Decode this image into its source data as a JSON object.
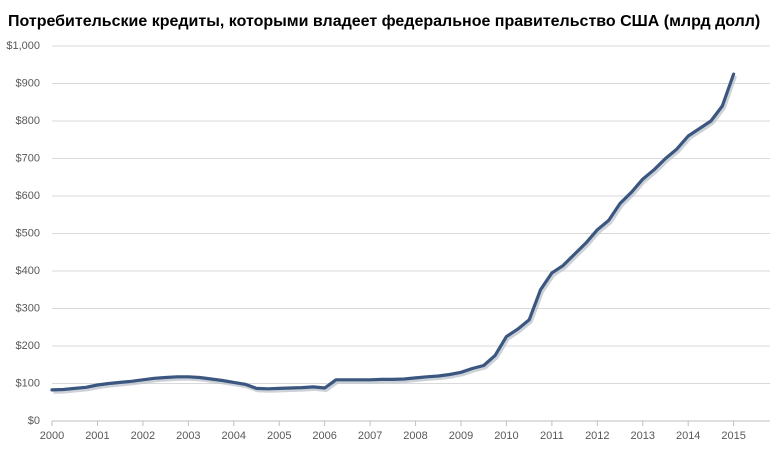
{
  "chart_data": {
    "type": "line",
    "title": "Потребительские кредиты, которыми владеет федеральное правительство США (млрд долл)",
    "x": [
      2000,
      2000.25,
      2000.5,
      2000.75,
      2001,
      2001.25,
      2001.5,
      2001.75,
      2002,
      2002.25,
      2002.5,
      2002.75,
      2003,
      2003.25,
      2003.5,
      2003.75,
      2004,
      2004.25,
      2004.5,
      2004.75,
      2005,
      2005.25,
      2005.5,
      2005.75,
      2006,
      2006.25,
      2006.5,
      2006.75,
      2007,
      2007.25,
      2007.5,
      2007.75,
      2008,
      2008.25,
      2008.5,
      2008.75,
      2009,
      2009.25,
      2009.5,
      2009.75,
      2010,
      2010.25,
      2010.5,
      2010.75,
      2011,
      2011.25,
      2011.5,
      2011.75,
      2012,
      2012.25,
      2012.5,
      2012.75,
      2013,
      2013.25,
      2013.5,
      2013.75,
      2014,
      2014.25,
      2014.5,
      2014.75,
      2015
    ],
    "series": [
      {
        "name": "Потребительские кредиты",
        "color": "#3b5780",
        "values": [
          83,
          84,
          87,
          90,
          96,
          100,
          103,
          106,
          110,
          114,
          116,
          118,
          118,
          116,
          112,
          108,
          103,
          98,
          87,
          86,
          87,
          88,
          89,
          91,
          88,
          110,
          110,
          110,
          110,
          111,
          111,
          112,
          115,
          118,
          120,
          124,
          130,
          140,
          148,
          175,
          225,
          245,
          270,
          350,
          395,
          415,
          445,
          475,
          510,
          535,
          580,
          610,
          645,
          670,
          700,
          725,
          760,
          780,
          800,
          840,
          925
        ]
      }
    ],
    "xlim": [
      2000,
      2015.8
    ],
    "xticks": [
      2000,
      2001,
      2002,
      2003,
      2004,
      2005,
      2006,
      2007,
      2008,
      2009,
      2010,
      2011,
      2012,
      2013,
      2014,
      2015
    ],
    "ylim": [
      0,
      1000
    ],
    "yticks": [
      {
        "value": 0,
        "label": "$0"
      },
      {
        "value": 100,
        "label": "$100"
      },
      {
        "value": 200,
        "label": "$200"
      },
      {
        "value": 300,
        "label": "$300"
      },
      {
        "value": 400,
        "label": "$400"
      },
      {
        "value": 500,
        "label": "$500"
      },
      {
        "value": 600,
        "label": "$600"
      },
      {
        "value": 700,
        "label": "$700"
      },
      {
        "value": 800,
        "label": "$800"
      },
      {
        "value": 900,
        "label": "$900"
      },
      {
        "value": 1000,
        "label": "$1,000"
      }
    ],
    "grid": true
  }
}
